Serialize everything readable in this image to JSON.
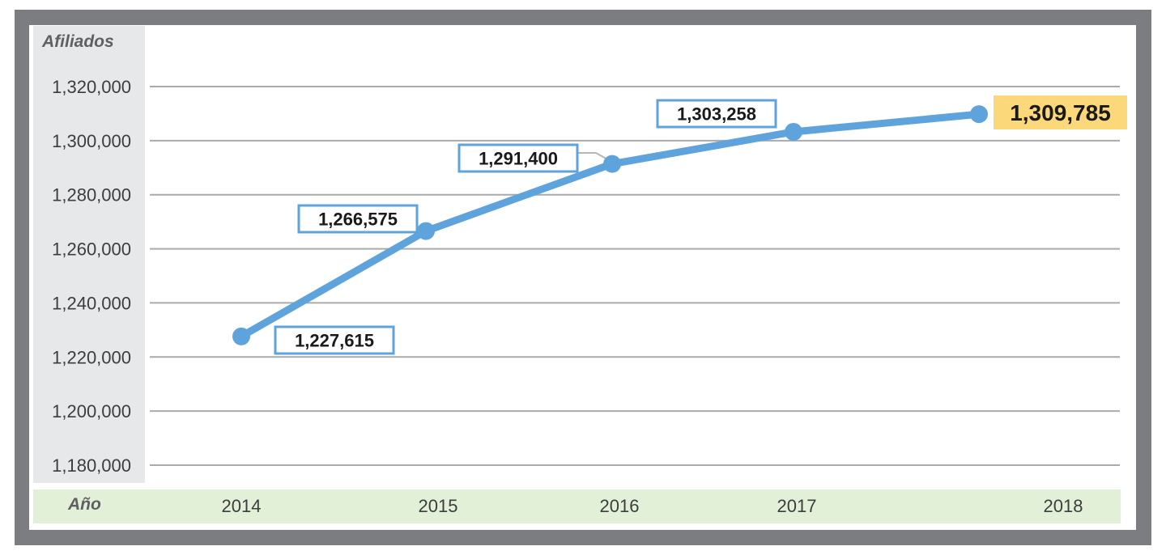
{
  "chart_data": {
    "type": "line",
    "ylabel": "Afiliados",
    "xlabel": "Año",
    "x": [
      "2014",
      "2015",
      "2016",
      "2017",
      "2018"
    ],
    "series": [
      {
        "values": [
          1227615,
          1266575,
          1291400,
          1303258,
          1309785
        ]
      }
    ],
    "data_labels": [
      "1,227,615",
      "1,266,575",
      "1,291,400",
      "1,303,258",
      "1,309,785"
    ],
    "yticks": [
      1180000,
      1200000,
      1220000,
      1240000,
      1260000,
      1280000,
      1300000,
      1320000
    ],
    "ytick_labels": [
      "1,180,000",
      "1,200,000",
      "1,220,000",
      "1,240,000",
      "1,260,000",
      "1,280,000",
      "1,300,000",
      "1,320,000"
    ],
    "ylim": [
      1180000,
      1320000
    ],
    "grid": true,
    "line_color": "#5fa3dc",
    "highlight_color": "#fbd97a"
  }
}
